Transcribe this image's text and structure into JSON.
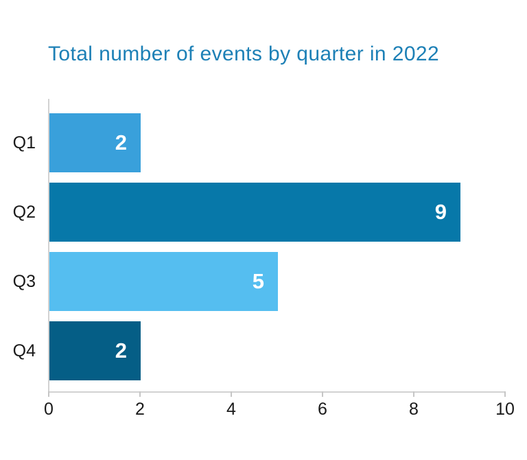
{
  "chart_data": {
    "type": "bar",
    "orientation": "horizontal",
    "title": "Total number of events by quarter in 2022",
    "categories": [
      "Q1",
      "Q2",
      "Q3",
      "Q4"
    ],
    "values": [
      2,
      9,
      5,
      2
    ],
    "value_labels": [
      "2",
      "9",
      "5",
      "2"
    ],
    "bar_colors": [
      "#39a0db",
      "#0778a9",
      "#55bef0",
      "#055e86"
    ],
    "xlim": [
      0,
      10
    ],
    "x_ticks": [
      "0",
      "2",
      "4",
      "6",
      "8",
      "10"
    ],
    "x_tick_values": [
      0,
      2,
      4,
      6,
      8,
      10
    ],
    "xlabel": "",
    "ylabel": "",
    "grid": false,
    "legend": false,
    "colors": {
      "title": "#1d80b6",
      "value_label": "#ffffff",
      "axis_line": "#d2d2d2",
      "tick_mark": "#c6c6c6",
      "tick_label": "#1a1a1a",
      "category_label": "#1a1a1a",
      "background": "#ffffff"
    }
  }
}
